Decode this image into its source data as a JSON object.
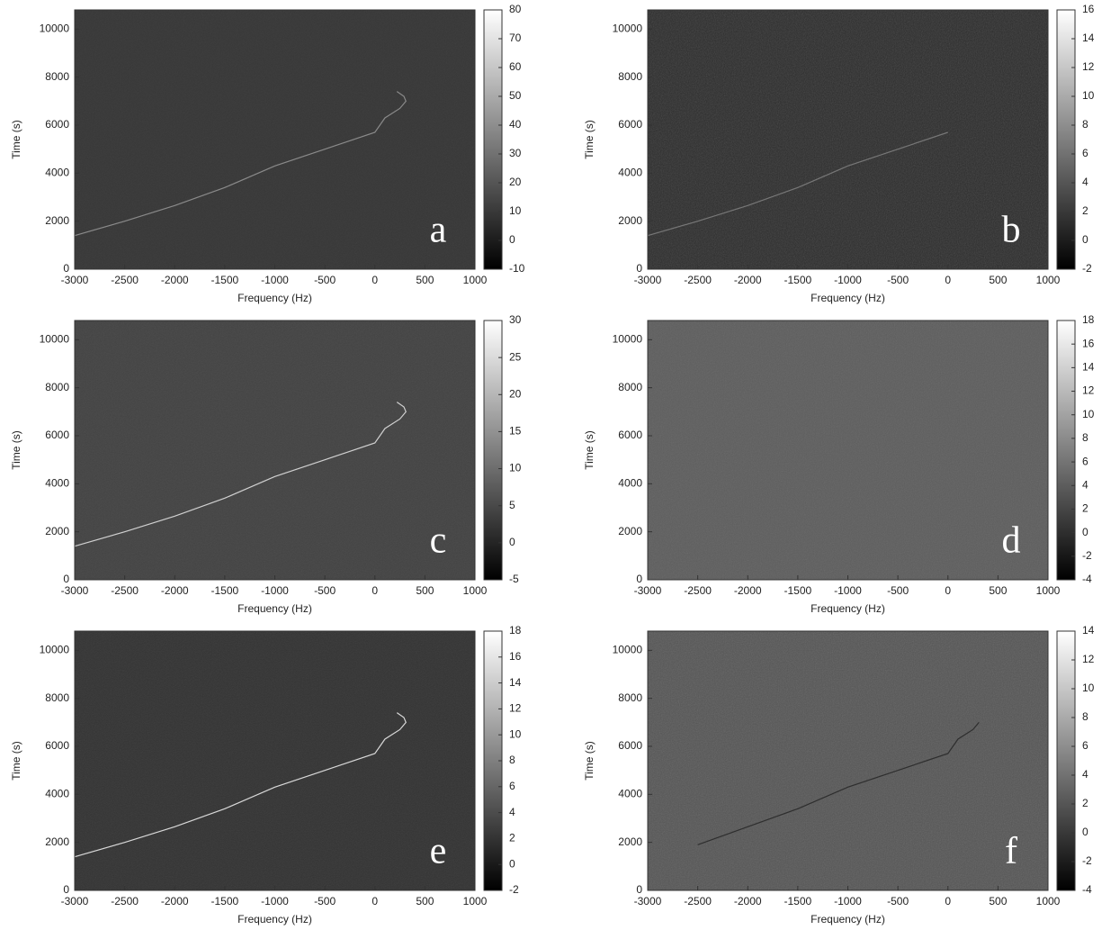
{
  "chart_data": [
    {
      "type": "heatmap",
      "panel_label": "a",
      "xlabel": "Frequency (Hz)",
      "ylabel": "Time (s)",
      "xlim": [
        -3000,
        1000
      ],
      "xticks": [
        -3000,
        -2500,
        -2000,
        -1500,
        -1000,
        -500,
        0,
        500,
        1000
      ],
      "ylim": [
        0,
        10800
      ],
      "yticks": [
        0,
        2000,
        4000,
        6000,
        8000,
        10000
      ],
      "colorbar": {
        "lim": [
          -10,
          80
        ],
        "ticks": [
          -10,
          0,
          10,
          20,
          30,
          40,
          50,
          60,
          70,
          80
        ]
      },
      "background_value": 9,
      "trace": {
        "color": "#8a8a8a",
        "x": [
          -3000,
          -2500,
          -2000,
          -1500,
          -1000,
          -500,
          0,
          100,
          250,
          310,
          290,
          220
        ],
        "y": [
          1400,
          2000,
          2650,
          3400,
          4300,
          5000,
          5700,
          6300,
          6700,
          7000,
          7200,
          7400
        ]
      }
    },
    {
      "type": "heatmap",
      "panel_label": "b",
      "xlabel": "Frequency (Hz)",
      "ylabel": "Time (s)",
      "xlim": [
        -3000,
        1000
      ],
      "xticks": [
        -3000,
        -2500,
        -2000,
        -1500,
        -1000,
        -500,
        0,
        500,
        1000
      ],
      "ylim": [
        0,
        10800
      ],
      "yticks": [
        0,
        2000,
        4000,
        6000,
        8000,
        10000
      ],
      "colorbar": {
        "lim": [
          -2,
          16
        ],
        "ticks": [
          -2,
          0,
          2,
          4,
          6,
          8,
          10,
          12,
          14,
          16
        ]
      },
      "background_value": 1,
      "trace": {
        "color": "#777777",
        "x": [
          -3000,
          -2500,
          -2000,
          -1500,
          -1000,
          -500,
          0
        ],
        "y": [
          1400,
          2000,
          2650,
          3400,
          4300,
          5000,
          5700
        ]
      }
    },
    {
      "type": "heatmap",
      "panel_label": "c",
      "xlabel": "Frequency (Hz)",
      "ylabel": "Time (s)",
      "xlim": [
        -3000,
        1000
      ],
      "xticks": [
        -3000,
        -2500,
        -2000,
        -1500,
        -1000,
        -500,
        0,
        500,
        1000
      ],
      "ylim": [
        0,
        10800
      ],
      "yticks": [
        0,
        2000,
        4000,
        6000,
        8000,
        10000
      ],
      "colorbar": {
        "lim": [
          -5,
          30
        ],
        "ticks": [
          -5,
          0,
          5,
          10,
          15,
          20,
          25,
          30
        ]
      },
      "background_value": 4,
      "trace": {
        "color": "#d0d0d0",
        "x": [
          -3000,
          -2500,
          -2000,
          -1500,
          -1000,
          -500,
          0,
          100,
          250,
          310,
          290,
          220
        ],
        "y": [
          1400,
          2000,
          2650,
          3400,
          4300,
          5000,
          5700,
          6300,
          6700,
          7000,
          7200,
          7400
        ]
      }
    },
    {
      "type": "heatmap",
      "panel_label": "d",
      "xlabel": "Frequency (Hz)",
      "ylabel": "Time (s)",
      "xlim": [
        -3000,
        1000
      ],
      "xticks": [
        -3000,
        -2500,
        -2000,
        -1500,
        -1000,
        -500,
        0,
        500,
        1000
      ],
      "ylim": [
        0,
        10800
      ],
      "yticks": [
        0,
        2000,
        4000,
        6000,
        8000,
        10000
      ],
      "colorbar": {
        "lim": [
          -4,
          18
        ],
        "ticks": [
          -4,
          -2,
          0,
          2,
          4,
          6,
          8,
          10,
          12,
          14,
          16,
          18
        ]
      },
      "background_value": 4
    },
    {
      "type": "heatmap",
      "panel_label": "e",
      "xlabel": "Frequency (Hz)",
      "ylabel": "Time (s)",
      "xlim": [
        -3000,
        1000
      ],
      "xticks": [
        -3000,
        -2500,
        -2000,
        -1500,
        -1000,
        -500,
        0,
        500,
        1000
      ],
      "ylim": [
        0,
        10800
      ],
      "yticks": [
        0,
        2000,
        4000,
        6000,
        8000,
        10000
      ],
      "colorbar": {
        "lim": [
          -2,
          18
        ],
        "ticks": [
          -2,
          0,
          2,
          4,
          6,
          8,
          10,
          12,
          14,
          16,
          18
        ]
      },
      "background_value": 2,
      "trace": {
        "color": "#d8d8d8",
        "x": [
          -3000,
          -2500,
          -2000,
          -1500,
          -1000,
          -500,
          0,
          100,
          250,
          310,
          290,
          220
        ],
        "y": [
          1400,
          2000,
          2650,
          3400,
          4300,
          5000,
          5700,
          6300,
          6700,
          7000,
          7200,
          7400
        ]
      }
    },
    {
      "type": "heatmap",
      "panel_label": "f",
      "xlabel": "Frequency (Hz)",
      "ylabel": "Time (s)",
      "xlim": [
        -3000,
        1000
      ],
      "xticks": [
        -3000,
        -2500,
        -2000,
        -1500,
        -1000,
        -500,
        0,
        500,
        1000
      ],
      "ylim": [
        0,
        10800
      ],
      "yticks": [
        0,
        2000,
        4000,
        6000,
        8000,
        10000
      ],
      "colorbar": {
        "lim": [
          -4,
          14
        ],
        "ticks": [
          -4,
          -2,
          0,
          2,
          4,
          6,
          8,
          10,
          12,
          14
        ]
      },
      "background_value": 2,
      "trace": {
        "color": "#2e2e2e",
        "x": [
          -2500,
          -2000,
          -1500,
          -1000,
          -500,
          0,
          100,
          250,
          310
        ],
        "y": [
          1900,
          2650,
          3400,
          4300,
          5000,
          5700,
          6300,
          6700,
          7000
        ]
      }
    }
  ]
}
